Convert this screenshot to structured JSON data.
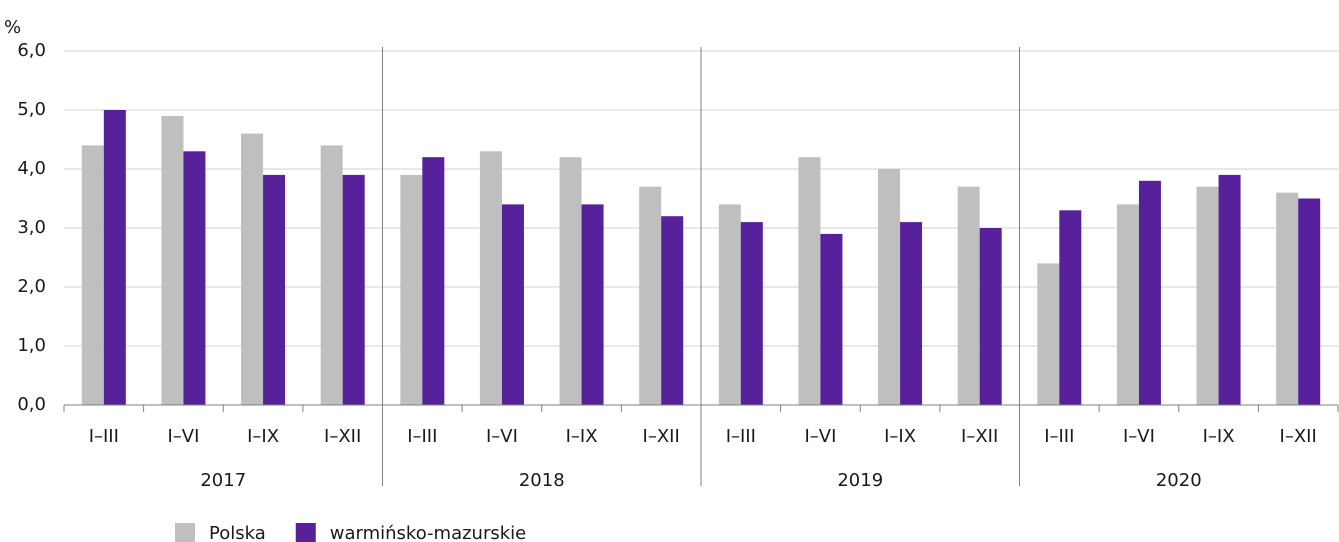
{
  "chart_data": {
    "type": "bar",
    "y_unit": "%",
    "categories": [
      "I–III",
      "I–VI",
      "I–IX",
      "I–XII",
      "I–III",
      "I–VI",
      "I–IX",
      "I–XII",
      "I–III",
      "I–VI",
      "I–IX",
      "I–XII",
      "I–III",
      "I–VI",
      "I–IX",
      "I–XII"
    ],
    "groups": [
      "2017",
      "2018",
      "2019",
      "2020"
    ],
    "series": [
      {
        "name": "Polska",
        "color": "#bfbfbf",
        "values": [
          4.4,
          4.9,
          4.6,
          4.4,
          3.9,
          4.3,
          4.2,
          3.7,
          3.4,
          4.2,
          4.0,
          3.7,
          2.4,
          3.4,
          3.7,
          3.6
        ]
      },
      {
        "name": "warmińsko-mazurskie",
        "color": "#56219a",
        "values": [
          5.0,
          4.3,
          3.9,
          3.9,
          4.2,
          3.4,
          3.4,
          3.2,
          3.1,
          2.9,
          3.1,
          3.0,
          3.3,
          3.8,
          3.9,
          3.5
        ]
      }
    ],
    "ylim": [
      0,
      6
    ],
    "yticks": [
      {
        "value": 0,
        "label": "0,0"
      },
      {
        "value": 1,
        "label": "1,0"
      },
      {
        "value": 2,
        "label": "2,0"
      },
      {
        "value": 3,
        "label": "3,0"
      },
      {
        "value": 4,
        "label": "4,0"
      },
      {
        "value": 5,
        "label": "5,0"
      },
      {
        "value": 6,
        "label": "6,0"
      }
    ],
    "grid": true
  }
}
